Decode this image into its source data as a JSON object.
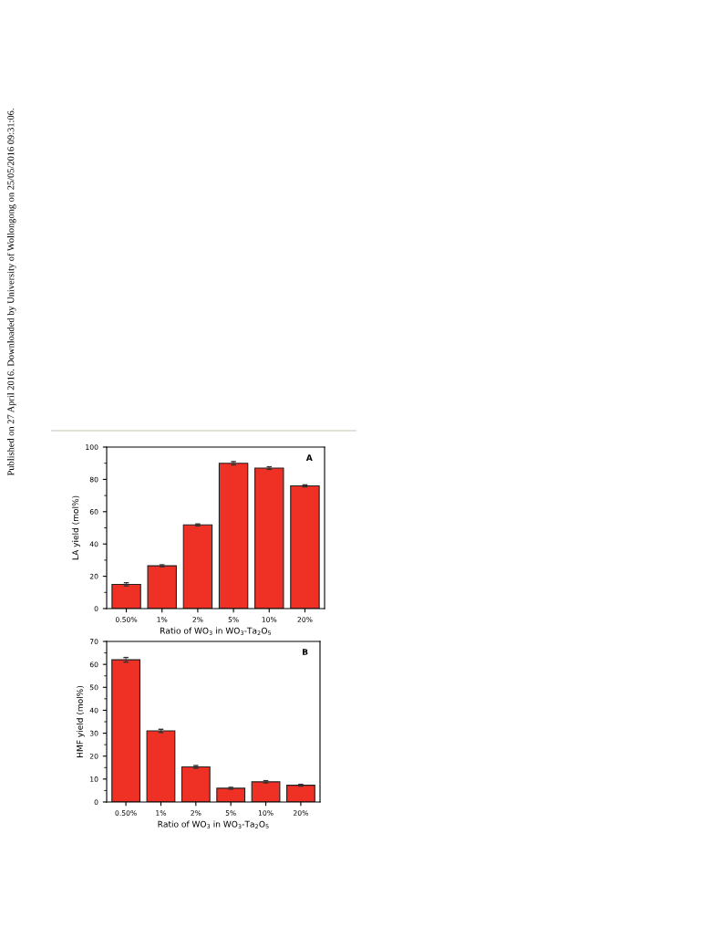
{
  "chart_data": [
    {
      "type": "bar",
      "categories": [
        "0.50%",
        "1%",
        "2%",
        "5%",
        "10%",
        "20%"
      ],
      "values": [
        15,
        26.5,
        51.8,
        90,
        87,
        76
      ],
      "errors": [
        1,
        0.6,
        0.6,
        1,
        0.8,
        0.6
      ],
      "color": "#ee3124",
      "ylabel": "LA yield (mol%)",
      "xlabel": "Ratio of WO$_{3}$ in WO$_{3}$-Ta$_{2}$O$_{5}$",
      "ylim": [
        0,
        100
      ],
      "yticks": [
        0,
        20,
        40,
        60,
        80,
        100
      ],
      "grid": false,
      "annotations": [
        "A",
        "Published on 27 April 2016. Downloaded by University of Wollongong on 25/05/2016 09:31:06."
      ]
    },
    {
      "type": "bar",
      "categories": [
        "0.50%",
        "1%",
        "2%",
        "5%",
        "10%",
        "20%"
      ],
      "values": [
        62,
        31,
        15.3,
        6,
        8.8,
        7.3
      ],
      "errors": [
        1,
        0.7,
        0.6,
        0.4,
        0.5,
        0.4
      ],
      "color": "#ee3124",
      "ylabel": "HMF yield (mol%)",
      "xlabel": "Ratio of WO$_{3}$ in WO$_{3}$-Ta$_{2}$O$_{5}$",
      "ylim": [
        0,
        70
      ],
      "yticks": [
        0,
        10,
        20,
        30,
        40,
        50,
        60,
        70
      ],
      "grid": false,
      "annotations": [
        "B"
      ]
    }
  ]
}
